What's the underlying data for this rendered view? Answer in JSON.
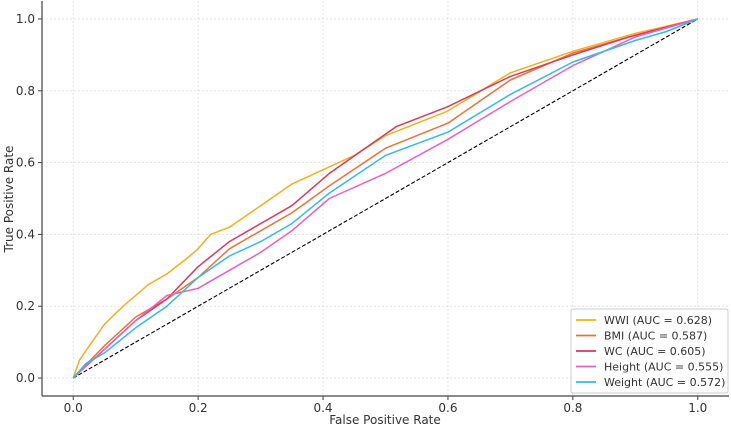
{
  "chart_data": {
    "type": "line",
    "title": "",
    "xlabel": "False Positive Rate",
    "ylabel": "True Positive Rate",
    "xlim": [
      -0.05,
      1.05
    ],
    "ylim": [
      -0.05,
      1.05
    ],
    "xticks": [
      "0.0",
      "0.2",
      "0.4",
      "0.6",
      "0.8",
      "1.0"
    ],
    "yticks": [
      "0.0",
      "0.2",
      "0.4",
      "0.6",
      "0.8",
      "1.0"
    ],
    "grid": true,
    "legend_position": "bottom-right",
    "diagonal": {
      "x": [
        0,
        1
      ],
      "y": [
        0,
        1
      ],
      "color": "#000000",
      "style": "dashed"
    },
    "series": [
      {
        "name": "WWI (AUC = 0.628)",
        "color": "#F2B01E",
        "x": [
          0,
          0.01,
          0.03,
          0.05,
          0.08,
          0.12,
          0.15,
          0.18,
          0.2,
          0.22,
          0.25,
          0.3,
          0.35,
          0.4,
          0.45,
          0.5,
          0.6,
          0.7,
          0.8,
          0.9,
          1.0
        ],
        "y": [
          0,
          0.05,
          0.1,
          0.15,
          0.2,
          0.26,
          0.29,
          0.33,
          0.36,
          0.4,
          0.42,
          0.48,
          0.54,
          0.58,
          0.62,
          0.675,
          0.744,
          0.85,
          0.91,
          0.96,
          1.0
        ]
      },
      {
        "name": "BMI (AUC = 0.587)",
        "color": "#E8743B",
        "x": [
          0,
          0.05,
          0.1,
          0.15,
          0.2,
          0.25,
          0.3,
          0.35,
          0.41,
          0.5,
          0.6,
          0.7,
          0.8,
          0.9,
          1.0
        ],
        "y": [
          0,
          0.09,
          0.17,
          0.22,
          0.28,
          0.36,
          0.41,
          0.46,
          0.535,
          0.64,
          0.71,
          0.83,
          0.905,
          0.955,
          1.0
        ]
      },
      {
        "name": "WC (AUC = 0.605)",
        "color": "#D93A5A",
        "x": [
          0,
          0.05,
          0.1,
          0.15,
          0.2,
          0.25,
          0.3,
          0.35,
          0.41,
          0.517,
          0.6,
          0.7,
          0.8,
          0.89,
          1.0
        ],
        "y": [
          0,
          0.08,
          0.16,
          0.22,
          0.31,
          0.38,
          0.43,
          0.48,
          0.57,
          0.7,
          0.756,
          0.84,
          0.9,
          0.95,
          1.0
        ]
      },
      {
        "name": "Height (AUC = 0.555)",
        "color": "#EC5FC0",
        "x": [
          0,
          0.05,
          0.1,
          0.15,
          0.2,
          0.25,
          0.3,
          0.35,
          0.41,
          0.5,
          0.6,
          0.7,
          0.8,
          0.85,
          0.9,
          1.0
        ],
        "y": [
          0,
          0.08,
          0.16,
          0.23,
          0.25,
          0.3,
          0.35,
          0.41,
          0.5,
          0.57,
          0.665,
          0.77,
          0.87,
          0.91,
          0.95,
          1.0
        ]
      },
      {
        "name": "Weight (AUC = 0.572)",
        "color": "#33BBE0",
        "x": [
          0,
          0.02,
          0.05,
          0.1,
          0.15,
          0.2,
          0.25,
          0.3,
          0.35,
          0.41,
          0.5,
          0.6,
          0.7,
          0.8,
          0.9,
          0.95,
          1.0
        ],
        "y": [
          0,
          0.04,
          0.07,
          0.14,
          0.2,
          0.28,
          0.34,
          0.38,
          0.43,
          0.515,
          0.62,
          0.685,
          0.79,
          0.88,
          0.94,
          0.965,
          1.0
        ]
      }
    ]
  }
}
